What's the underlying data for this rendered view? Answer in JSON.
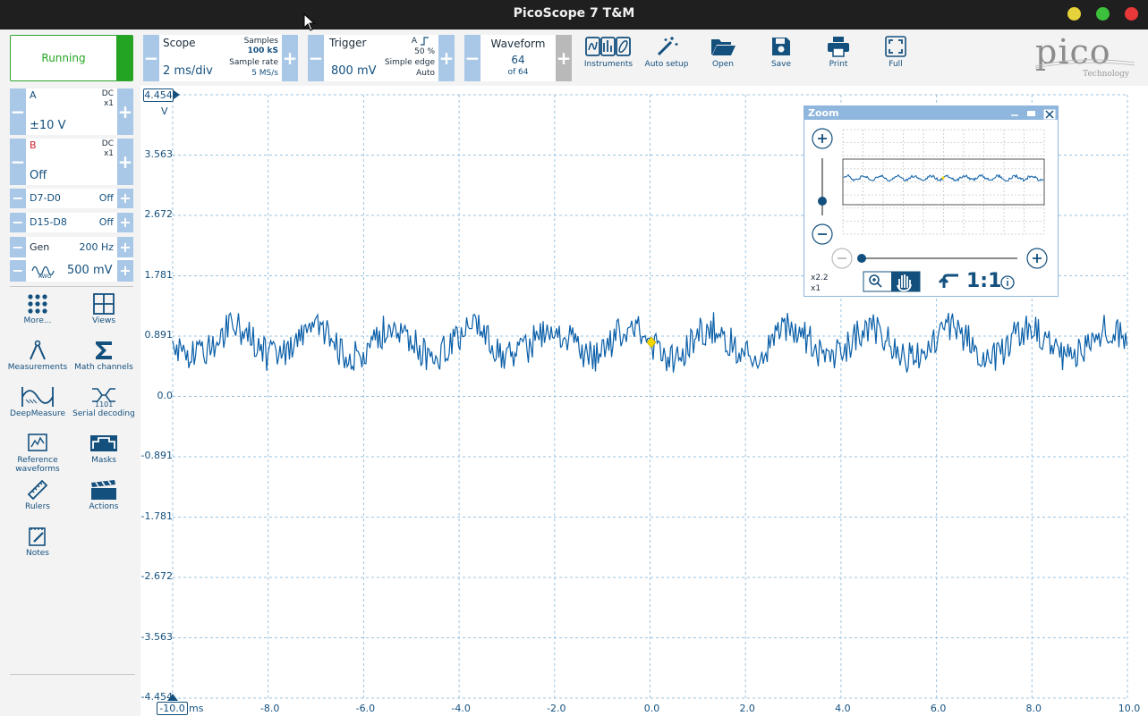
{
  "window": {
    "title": "PicoScope 7 T&M"
  },
  "toolbar": {
    "run_label": "Running",
    "scope": {
      "label": "Scope",
      "value": "2 ms/div",
      "samples_label": "Samples",
      "samples_value": "100 kS",
      "rate_label": "Sample rate",
      "rate_value": "5 MS/s"
    },
    "trigger": {
      "label": "Trigger",
      "value": "800 mV",
      "channel": "A",
      "percent": "50 %",
      "type": "Simple edge",
      "mode": "Auto"
    },
    "waveform": {
      "label": "Waveform",
      "current": "64",
      "total": "of 64"
    },
    "buttons": {
      "instruments": "Instruments",
      "auto_setup": "Auto setup",
      "open": "Open",
      "save": "Save",
      "print": "Print",
      "full": "Full"
    },
    "logo_text": "pico",
    "logo_sub": "Technology"
  },
  "channels": {
    "a": {
      "name": "A",
      "coupling": "DC",
      "probe": "x1",
      "range": "±10 V"
    },
    "b": {
      "name": "B",
      "coupling": "DC",
      "probe": "x1",
      "range": "Off"
    },
    "d7d0": {
      "name": "D7-D0",
      "state": "Off"
    },
    "d15d8": {
      "name": "D15-D8",
      "state": "Off"
    },
    "gen": {
      "name": "Gen",
      "freq": "200 Hz",
      "amplitude": "500 mV",
      "icon_text": "AWG"
    }
  },
  "tools": {
    "more": "More...",
    "views": "Views",
    "measurements": "Measurements",
    "math": "Math channels",
    "deepmeasure": "DeepMeasure",
    "serial": "Serial decoding",
    "serial_icon_text": "1101",
    "reference_1": "Reference",
    "reference_2": "waveforms",
    "masks": "Masks",
    "rulers": "Rulers",
    "actions": "Actions",
    "notes": "Notes"
  },
  "plot": {
    "y_top_value": "4.454",
    "y_unit": "V",
    "y_ticks": [
      "3.563",
      "2.672",
      "1.781",
      "0.891",
      "0.0",
      "-0.891",
      "-1.781",
      "-2.672",
      "-3.563",
      "-4.454"
    ],
    "x_left_value": "-10.0",
    "x_unit": "ms",
    "x_ticks": [
      "-8.0",
      "-6.0",
      "-4.0",
      "-2.0",
      "0.0",
      "2.0",
      "4.0",
      "6.0",
      "8.0",
      "10.0"
    ]
  },
  "zoom": {
    "title": "Zoom",
    "zoom_x": "x2.2",
    "zoom_y": "x1",
    "reset": "1:1"
  },
  "colors": {
    "accent": "#14507e",
    "running": "#23a523",
    "trace": "#0a5fa8",
    "trigger_marker": "#f5d800"
  }
}
